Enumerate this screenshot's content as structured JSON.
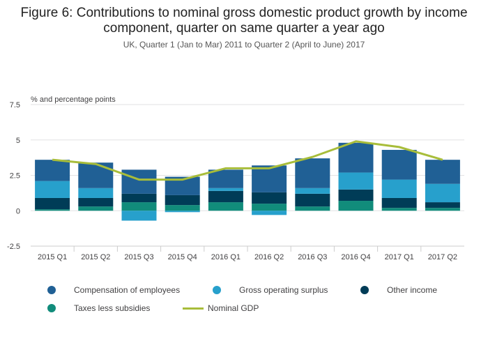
{
  "chart_data": {
    "type": "bar",
    "stacked": true,
    "title": "Figure 6: Contributions to nominal gross domestic product growth by income component, quarter on same quarter a year ago",
    "subtitle": "UK, Quarter 1 (Jan to Mar) 2011 to Quarter 2 (April to June) 2017",
    "ylabel": "% and percentage points",
    "ylim": [
      -2.5,
      7.5
    ],
    "yticks": [
      -2.5,
      0,
      2.5,
      5,
      7.5
    ],
    "ytick_labels": [
      "-2.5",
      "0",
      "2.5",
      "5",
      "7.5"
    ],
    "grid": true,
    "legend_placement": "bottom",
    "categories": [
      "2015 Q1",
      "2015 Q2",
      "2015 Q3",
      "2015 Q4",
      "2016 Q1",
      "2016 Q2",
      "2016 Q3",
      "2016 Q4",
      "2017 Q1",
      "2017 Q2"
    ],
    "series": [
      {
        "name": "Taxes less subsidies",
        "color": "#118c7b",
        "values": [
          0.1,
          0.3,
          0.6,
          0.4,
          0.6,
          0.5,
          0.3,
          0.7,
          0.2,
          0.2
        ]
      },
      {
        "name": "Other income",
        "color": "#003c57",
        "values": [
          0.8,
          0.6,
          0.6,
          0.7,
          0.8,
          0.8,
          0.9,
          0.8,
          0.7,
          0.4
        ]
      },
      {
        "name": "Gross operating surplus",
        "color": "#27a0cc",
        "values": [
          1.2,
          0.7,
          -0.7,
          -0.1,
          0.2,
          -0.3,
          0.4,
          1.2,
          1.3,
          1.3
        ]
      },
      {
        "name": "Compensation of employees",
        "color": "#206095",
        "values": [
          1.5,
          1.8,
          1.7,
          1.3,
          1.3,
          1.9,
          2.1,
          2.1,
          2.1,
          1.7
        ]
      }
    ],
    "line": {
      "name": "Nominal GDP",
      "color": "#a8bd3a",
      "values": [
        3.6,
        3.3,
        2.2,
        2.2,
        3.0,
        3.0,
        3.8,
        4.9,
        4.5,
        3.6
      ]
    }
  },
  "legend": [
    "Compensation of employees",
    "Gross operating surplus",
    "Other income",
    "Taxes less subsidies",
    "Nominal GDP"
  ]
}
